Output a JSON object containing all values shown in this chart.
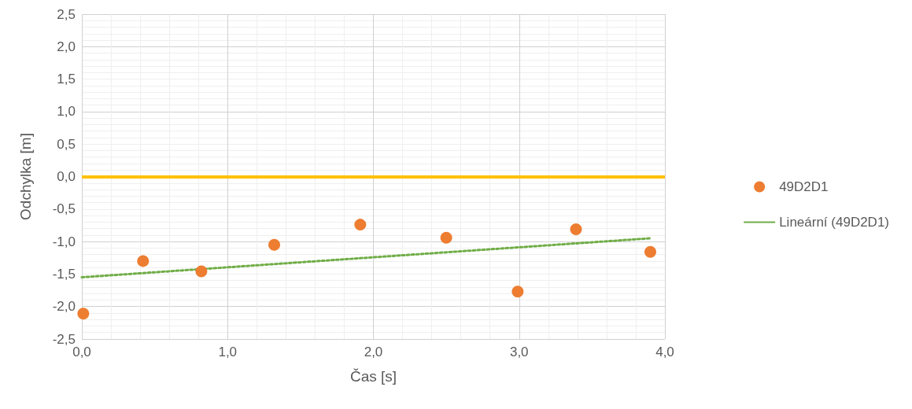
{
  "chart_data": {
    "type": "scatter",
    "xlabel": "Čas [s]",
    "ylabel": "Odchylka [m]",
    "xlim": [
      0,
      4
    ],
    "ylim": [
      -2.5,
      2.5
    ],
    "xticks": [
      {
        "value": 0,
        "label": "0,0"
      },
      {
        "value": 1,
        "label": "1,0"
      },
      {
        "value": 2,
        "label": "2,0"
      },
      {
        "value": 3,
        "label": "3,0"
      },
      {
        "value": 4,
        "label": "4,0"
      }
    ],
    "yticks": [
      {
        "value": -2.5,
        "label": "-2,5"
      },
      {
        "value": -2,
        "label": "-2,0"
      },
      {
        "value": -1.5,
        "label": "-1,5"
      },
      {
        "value": -1,
        "label": "-1,0"
      },
      {
        "value": -0.5,
        "label": "-0,5"
      },
      {
        "value": 0,
        "label": "0,0"
      },
      {
        "value": 0.5,
        "label": "0,5"
      },
      {
        "value": 1,
        "label": "1,0"
      },
      {
        "value": 1.5,
        "label": "1,5"
      },
      {
        "value": 2,
        "label": "2,0"
      },
      {
        "value": 2.5,
        "label": "2,5"
      }
    ],
    "grid": true,
    "legend": "right",
    "ref_lines": [
      {
        "axis": "y",
        "value": 0,
        "label": null,
        "color": "#ffc000"
      }
    ],
    "series": [
      {
        "name": "49D2D1",
        "color": "#ed7d31",
        "marker": "circle",
        "x": [
          0.01,
          0.42,
          0.82,
          1.32,
          1.91,
          2.5,
          2.99,
          3.39,
          3.9
        ],
        "values": [
          -2.11,
          -1.3,
          -1.46,
          -1.05,
          -0.74,
          -0.94,
          -1.77,
          -0.81,
          -1.16
        ]
      },
      {
        "name": "Lineární (49D2D1)",
        "type": "line",
        "color": "#70ad47",
        "marker": "none",
        "line_style": "dotted",
        "x": [
          0,
          3.9
        ],
        "values": [
          -1.55,
          -0.95
        ]
      }
    ]
  }
}
